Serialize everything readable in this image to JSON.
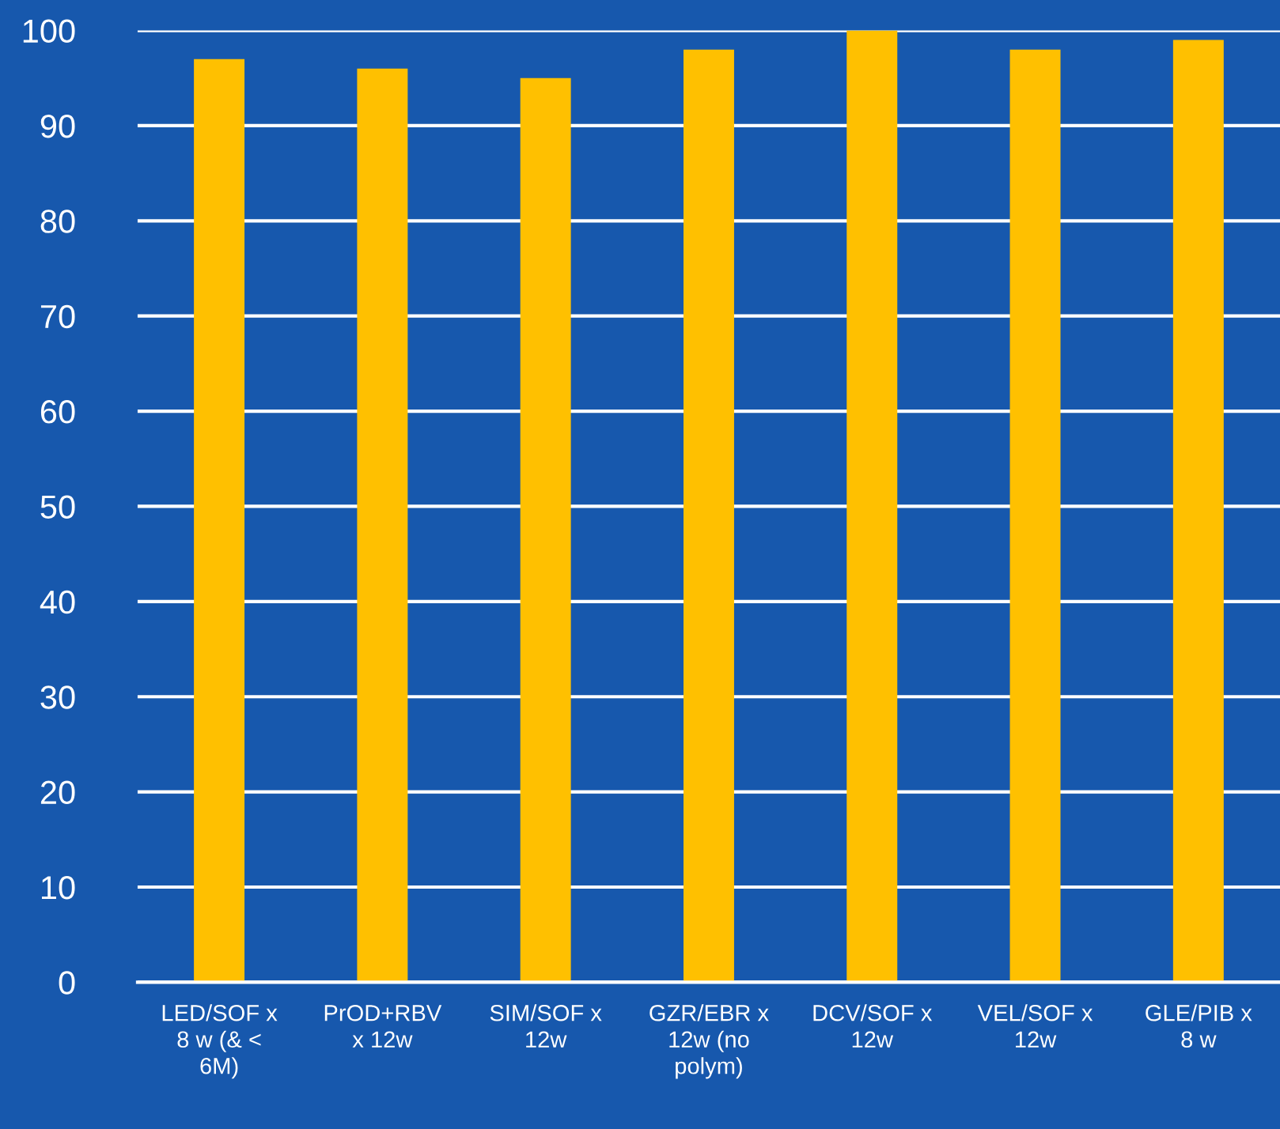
{
  "chart_data": {
    "type": "bar",
    "categories": [
      "LED/SOF x\n8 w (& <\n6M)",
      "PrOD+RBV\nx 12w",
      "SIM/SOF x\n12w",
      "GZR/EBR x\n12w (no\npolym)",
      "DCV/SOF x\n12w",
      "VEL/SOF x\n12w",
      "GLE/PIB x\n8 w"
    ],
    "values": [
      97,
      96,
      95,
      98,
      100,
      98,
      99
    ],
    "color": "#ffc000",
    "ylim": [
      0,
      100
    ],
    "yticks": [
      0,
      10,
      20,
      30,
      40,
      50,
      60,
      70,
      80,
      90,
      100
    ],
    "grid": "y"
  }
}
